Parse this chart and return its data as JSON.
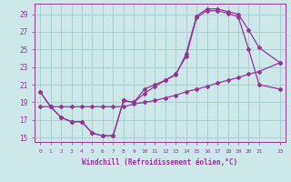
{
  "background_color": "#cce8e8",
  "grid_color": "#aacfcf",
  "line_color": "#993399",
  "xlim": [
    -0.5,
    23.5
  ],
  "ylim": [
    14.5,
    30.2
  ],
  "yticks": [
    15,
    17,
    19,
    21,
    23,
    25,
    27,
    29
  ],
  "xticks": [
    0,
    1,
    2,
    3,
    4,
    5,
    6,
    7,
    8,
    9,
    10,
    11,
    12,
    13,
    14,
    15,
    16,
    17,
    18,
    19,
    20,
    21,
    23
  ],
  "xlabel": "Windchill (Refroidissement éolien,°C)",
  "line1_x": [
    0,
    1,
    2,
    3,
    4,
    5,
    6,
    7,
    8,
    9,
    10,
    11,
    12,
    13,
    14,
    15,
    16,
    17,
    18,
    19,
    20,
    21,
    23
  ],
  "line1_y": [
    20.2,
    18.5,
    17.3,
    16.8,
    16.8,
    15.5,
    15.2,
    15.2,
    19.2,
    19.0,
    20.5,
    21.0,
    21.5,
    22.1,
    24.5,
    28.8,
    29.6,
    29.6,
    29.3,
    29.0,
    27.2,
    25.2,
    23.5
  ],
  "line2_x": [
    0,
    1,
    2,
    3,
    4,
    5,
    6,
    7,
    8,
    9,
    10,
    11,
    12,
    13,
    14,
    15,
    16,
    17,
    18,
    19,
    20,
    21,
    23
  ],
  "line2_y": [
    18.5,
    18.5,
    18.5,
    18.5,
    18.5,
    18.5,
    18.5,
    18.5,
    18.5,
    18.8,
    19.0,
    19.2,
    19.5,
    19.8,
    20.2,
    20.5,
    20.8,
    21.2,
    21.5,
    21.8,
    22.2,
    22.5,
    23.5
  ],
  "line3_x": [
    0,
    1,
    2,
    3,
    4,
    5,
    6,
    7,
    8,
    9,
    10,
    11,
    12,
    13,
    14,
    15,
    16,
    17,
    18,
    19,
    20,
    21,
    23
  ],
  "line3_y": [
    20.2,
    18.5,
    17.3,
    16.8,
    16.8,
    15.5,
    15.2,
    15.2,
    19.2,
    19.0,
    20.0,
    20.8,
    21.5,
    22.2,
    24.2,
    28.6,
    29.4,
    29.4,
    29.1,
    28.7,
    25.0,
    21.0,
    20.5
  ]
}
